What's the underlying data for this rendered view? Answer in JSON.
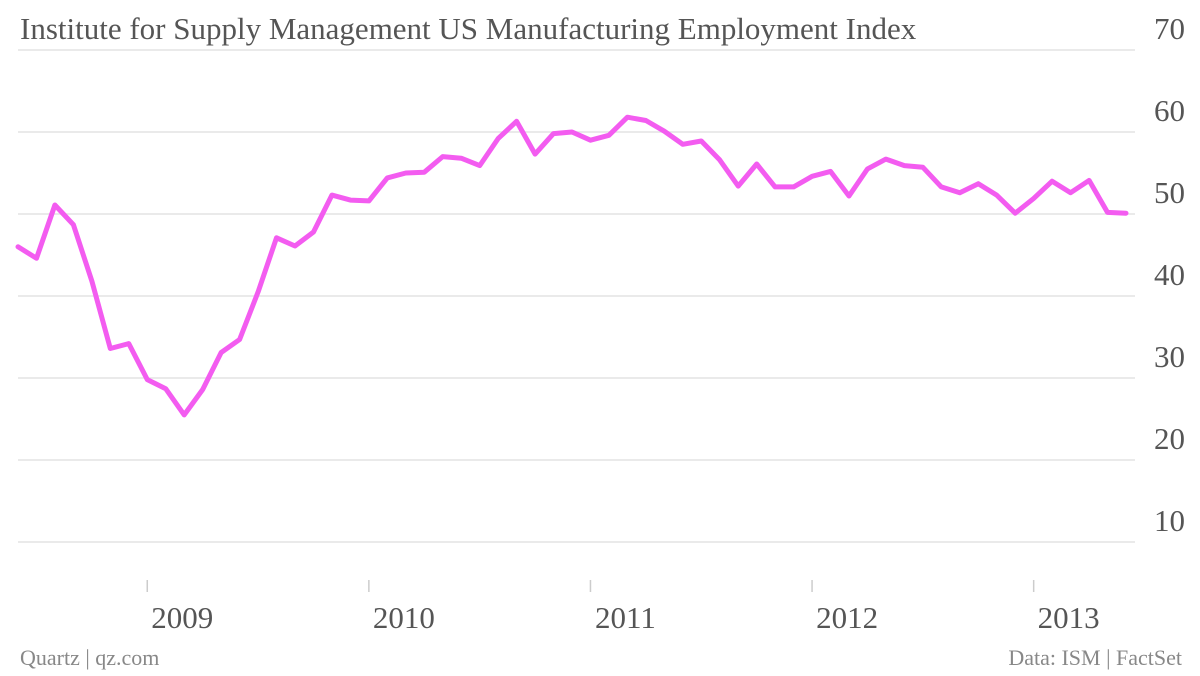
{
  "chart_data": {
    "type": "line",
    "title": "Institute for Supply Management US Manufacturing Employment Index",
    "source": "Data: ISM | FactSet",
    "credit": "Quartz | qz.com",
    "x": [
      "2008-06",
      "2008-07",
      "2008-08",
      "2008-09",
      "2008-10",
      "2008-11",
      "2008-12",
      "2009-01",
      "2009-02",
      "2009-03",
      "2009-04",
      "2009-05",
      "2009-06",
      "2009-07",
      "2009-08",
      "2009-09",
      "2009-10",
      "2009-11",
      "2009-12",
      "2010-01",
      "2010-02",
      "2010-03",
      "2010-04",
      "2010-05",
      "2010-06",
      "2010-07",
      "2010-08",
      "2010-09",
      "2010-10",
      "2010-11",
      "2010-12",
      "2011-01",
      "2011-02",
      "2011-03",
      "2011-04",
      "2011-05",
      "2011-06",
      "2011-07",
      "2011-08",
      "2011-09",
      "2011-10",
      "2011-11",
      "2011-12",
      "2012-01",
      "2012-02",
      "2012-03",
      "2012-04",
      "2012-05",
      "2012-06",
      "2012-07",
      "2012-08",
      "2012-09",
      "2012-10",
      "2012-11",
      "2012-12",
      "2013-01",
      "2013-02",
      "2013-03",
      "2013-04",
      "2013-05",
      "2013-06"
    ],
    "series": [
      {
        "name": "Employment Index",
        "color": "#f35cf0",
        "values": [
          46.0,
          44.6,
          51.1,
          48.7,
          41.8,
          33.6,
          34.2,
          29.8,
          28.7,
          25.5,
          28.6,
          33.1,
          34.7,
          40.5,
          47.1,
          46.1,
          47.8,
          52.3,
          51.7,
          51.6,
          54.4,
          55.0,
          55.1,
          57.0,
          56.8,
          55.9,
          59.2,
          61.3,
          57.3,
          59.8,
          60.0,
          59.0,
          59.6,
          61.8,
          61.4,
          60.1,
          58.5,
          58.9,
          56.6,
          53.4,
          56.1,
          53.3,
          53.3,
          54.6,
          55.2,
          52.2,
          55.5,
          56.7,
          55.9,
          55.7,
          53.3,
          52.6,
          53.7,
          52.3,
          50.1,
          51.9,
          54.0,
          52.6,
          54.1,
          50.2,
          50.1
        ]
      }
    ],
    "xlim": [
      "2008-06",
      "2013-06"
    ],
    "xticks": [
      {
        "value": "2009-01",
        "label": "2009"
      },
      {
        "value": "2010-01",
        "label": "2010"
      },
      {
        "value": "2011-01",
        "label": "2011"
      },
      {
        "value": "2012-01",
        "label": "2012"
      },
      {
        "value": "2013-01",
        "label": "2013"
      }
    ],
    "ylim": [
      5,
      70
    ],
    "yticks": [
      10,
      20,
      30,
      40,
      50,
      60,
      70
    ],
    "grid": true
  }
}
